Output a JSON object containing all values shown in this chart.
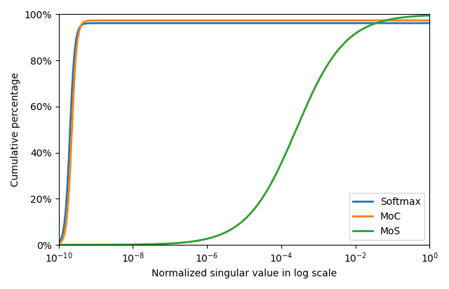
{
  "title": "",
  "xlabel": "Normalized singular value in log scale",
  "ylabel": "Cumulative percentage",
  "xlim_log": [
    -10,
    0
  ],
  "ylim": [
    0,
    1
  ],
  "legend_labels": [
    "Softmax",
    "MoC",
    "MoS"
  ],
  "legend_colors": [
    "#1f77b4",
    "#ff7f0e",
    "#2ca02c"
  ],
  "line_width": 2.0,
  "softmax_inflection_log": -9.7,
  "softmax_plateau": 0.962,
  "moc_inflection_log": -9.65,
  "moc_plateau": 0.974,
  "mos_inflection_log": -3.6,
  "mos_steepness": 1.5,
  "softmax_steepness": 15.0,
  "moc_steepness": 15.0,
  "ytick_labels": [
    "0%",
    "20%",
    "40%",
    "60%",
    "80%",
    "100%"
  ],
  "ytick_values": [
    0.0,
    0.2,
    0.4,
    0.6,
    0.8,
    1.0
  ]
}
